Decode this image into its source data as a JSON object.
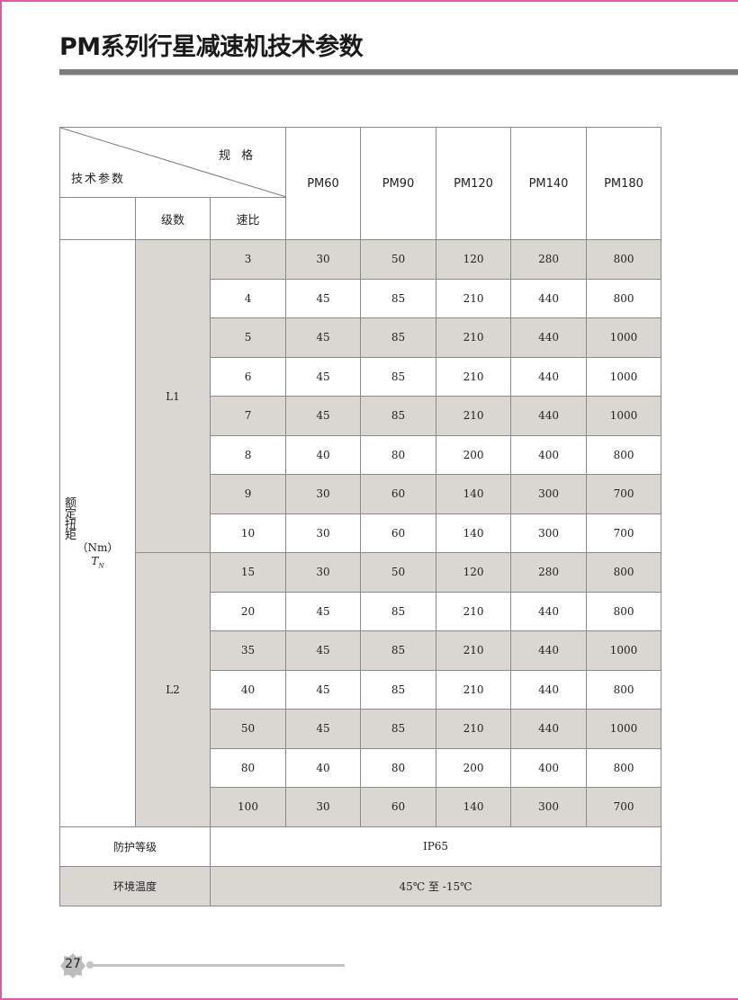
{
  "title": "PM系列行星减速机技术参数",
  "header": {
    "spec_label": "规 格",
    "param_label": "技术参数",
    "stage_label": "级数",
    "ratio_label": "速比",
    "models": [
      "PM60",
      "PM90",
      "PM120",
      "PM140",
      "PM180"
    ]
  },
  "torque": {
    "label": "额定扭矩",
    "unit": "（Nm）",
    "symbol": "T",
    "symbol_sub": "N",
    "groups": [
      {
        "stage": "L1",
        "rows": [
          {
            "ratio": "3",
            "values": [
              "30",
              "50",
              "120",
              "280",
              "800"
            ]
          },
          {
            "ratio": "4",
            "values": [
              "45",
              "85",
              "210",
              "440",
              "800"
            ]
          },
          {
            "ratio": "5",
            "values": [
              "45",
              "85",
              "210",
              "440",
              "1000"
            ]
          },
          {
            "ratio": "6",
            "values": [
              "45",
              "85",
              "210",
              "440",
              "1000"
            ]
          },
          {
            "ratio": "7",
            "values": [
              "45",
              "85",
              "210",
              "440",
              "1000"
            ]
          },
          {
            "ratio": "8",
            "values": [
              "40",
              "80",
              "200",
              "400",
              "800"
            ]
          },
          {
            "ratio": "9",
            "values": [
              "30",
              "60",
              "140",
              "300",
              "700"
            ]
          },
          {
            "ratio": "10",
            "values": [
              "30",
              "60",
              "140",
              "300",
              "700"
            ]
          }
        ]
      },
      {
        "stage": "L2",
        "rows": [
          {
            "ratio": "15",
            "values": [
              "30",
              "50",
              "120",
              "280",
              "800"
            ]
          },
          {
            "ratio": "20",
            "values": [
              "45",
              "85",
              "210",
              "440",
              "800"
            ]
          },
          {
            "ratio": "35",
            "values": [
              "45",
              "85",
              "210",
              "440",
              "1000"
            ]
          },
          {
            "ratio": "40",
            "values": [
              "45",
              "85",
              "210",
              "440",
              "800"
            ]
          },
          {
            "ratio": "50",
            "values": [
              "45",
              "85",
              "210",
              "440",
              "1000"
            ]
          },
          {
            "ratio": "80",
            "values": [
              "40",
              "80",
              "200",
              "400",
              "800"
            ]
          },
          {
            "ratio": "100",
            "values": [
              "30",
              "60",
              "140",
              "300",
              "700"
            ]
          }
        ]
      }
    ]
  },
  "protection": {
    "label": "防护等级",
    "value": "IP65"
  },
  "temperature": {
    "label": "环境温度",
    "value": "45℃ 至 -15℃"
  },
  "page_number": "27",
  "colors": {
    "shade": "#dad7d3",
    "title_bar": "#7d7d80",
    "page_border": "#e05aa8"
  }
}
